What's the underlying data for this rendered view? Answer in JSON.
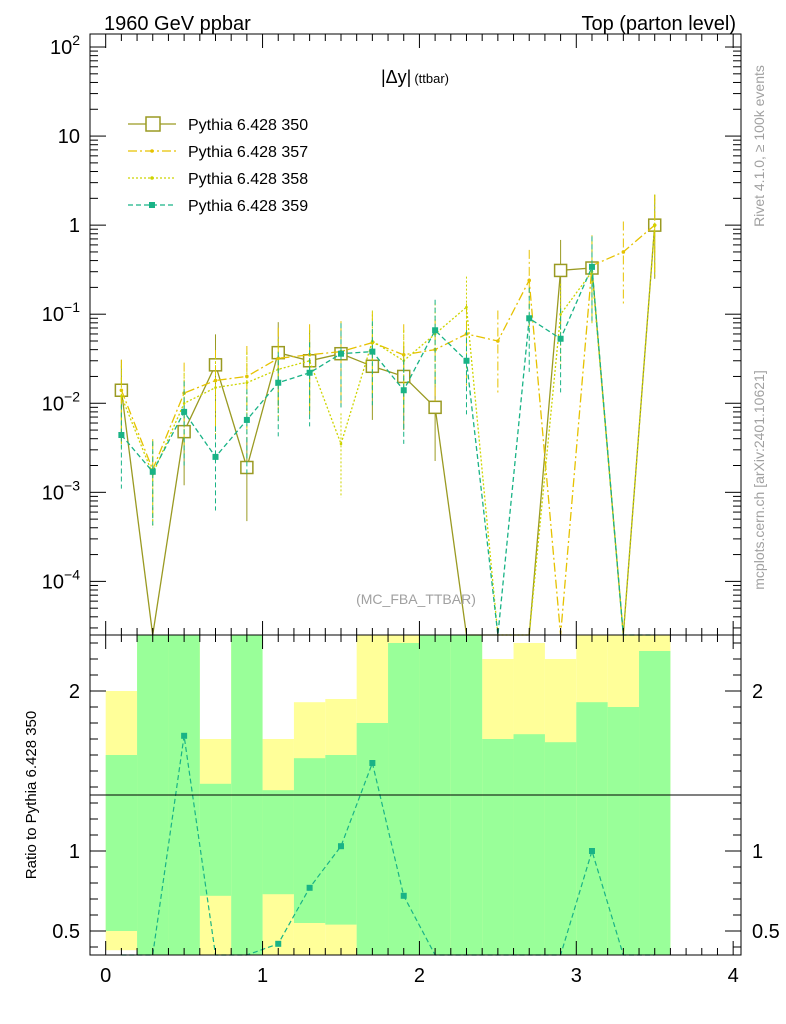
{
  "header": {
    "left": "1960 GeV ppbar",
    "right": "Top (parton level)"
  },
  "side_labels": {
    "rivet": "Rivet 4.1.0, ≥ 100k events",
    "mcplots": "mcplots.cern.ch [arXiv:2401.10621]"
  },
  "chart_data": {
    "type": "line",
    "title": "|Δy| (ttbar)",
    "title_main": "|Δy|",
    "title_sub": "(ttbar)",
    "analysis_label": "(MC_FBA_TTBAR)",
    "xlabel": "",
    "ylabel": "",
    "ratio_ylabel": "Ratio to Pythia 6.428 350",
    "xlim": [
      -0.1,
      4.05
    ],
    "ylim": [
      2.5e-05,
      140
    ],
    "yscale": "log",
    "ratio_ylim": [
      0.35,
      2.35
    ],
    "x_ticks": [
      "0",
      "1",
      "2",
      "3",
      "4"
    ],
    "y_ticks": [
      "10^-4",
      "10^-3",
      "10^-2",
      "10^-1",
      "1",
      "10",
      "10^2"
    ],
    "ratio_ticks": [
      "0.5",
      "1",
      "2"
    ],
    "legend_position": "top-left",
    "x": [
      0.1,
      0.3,
      0.5,
      0.7,
      0.9,
      1.1,
      1.3,
      1.5,
      1.7,
      1.9,
      2.1,
      2.3,
      2.5,
      2.7,
      2.9,
      3.1,
      3.3,
      3.5
    ],
    "bin_edges": [
      0,
      0.2,
      0.4,
      0.6,
      0.8,
      1.0,
      1.2,
      1.4,
      1.6,
      1.8,
      2.0,
      2.2,
      2.4,
      2.6,
      2.8,
      3.0,
      3.2,
      3.4,
      3.6
    ],
    "series": [
      {
        "name": "Pythia 6.428 350",
        "color": "#9a9a22",
        "dash": "",
        "marker": "open-square",
        "values": [
          0.014,
          2.5e-05,
          0.0048,
          0.027,
          0.0019,
          0.037,
          0.03,
          0.036,
          0.026,
          0.02,
          0.009,
          2.5e-05,
          2.5e-05,
          2.5e-05,
          0.31,
          0.33,
          2.5e-05,
          1.0
        ]
      },
      {
        "name": "Pythia 6.428 357",
        "color": "#e6c200",
        "dash": "9,3,2,3",
        "marker": "dot",
        "values": [
          0.014,
          0.0018,
          0.013,
          0.018,
          0.02,
          0.032,
          0.035,
          0.038,
          0.048,
          0.035,
          0.04,
          0.06,
          0.05,
          0.24,
          2.5e-05,
          0.35,
          0.5,
          1.0
        ]
      },
      {
        "name": "Pythia 6.428 358",
        "color": "#cdd400",
        "dash": "2,2",
        "marker": "small-dot",
        "values": [
          0.012,
          0.0016,
          0.01,
          0.015,
          0.017,
          0.024,
          0.03,
          0.0035,
          0.05,
          0.03,
          0.06,
          0.12,
          2.5e-05,
          0.0,
          0.1,
          0.3,
          2.5e-05,
          1.0
        ]
      },
      {
        "name": "Pythia 6.428 359",
        "color": "#19b386",
        "dash": "5,3",
        "marker": "filled-square",
        "values": [
          0.0044,
          0.0017,
          0.008,
          0.0025,
          0.0065,
          0.017,
          0.022,
          0.036,
          0.038,
          0.014,
          0.066,
          0.03,
          2.5e-05,
          0.09,
          0.053,
          0.34,
          2.5e-05,
          0.0
        ]
      }
    ],
    "ratio_series_359": [
      null,
      null,
      1.72,
      null,
      null,
      0.42,
      0.77,
      1.03,
      1.55,
      0.72,
      null,
      null,
      null,
      null,
      null,
      1.0,
      null,
      null
    ],
    "ratio_band_yellow": [
      [
        0.38,
        2.0
      ],
      [
        0.35,
        2.35
      ],
      [
        0.35,
        2.35
      ],
      [
        0.35,
        1.7
      ],
      [
        0.35,
        2.35
      ],
      [
        0.35,
        1.7
      ],
      [
        0.35,
        1.93
      ],
      [
        0.35,
        1.95
      ],
      [
        0.35,
        2.35
      ],
      [
        0.35,
        2.35
      ],
      [
        0.35,
        2.35
      ],
      [
        0.35,
        2.35
      ],
      [
        0.35,
        2.2
      ],
      [
        0.35,
        2.3
      ],
      [
        0.35,
        2.2
      ],
      [
        0.35,
        2.35
      ],
      [
        0.35,
        2.35
      ],
      [
        0.35,
        2.35
      ]
    ],
    "ratio_band_green": [
      [
        0.5,
        1.6
      ],
      [
        0.35,
        2.35
      ],
      [
        0.35,
        2.35
      ],
      [
        0.72,
        1.42
      ],
      [
        0.35,
        2.35
      ],
      [
        0.73,
        1.38
      ],
      [
        0.55,
        1.58
      ],
      [
        0.54,
        1.6
      ],
      [
        0.35,
        1.8
      ],
      [
        0.35,
        2.3
      ],
      [
        0.35,
        2.35
      ],
      [
        0.35,
        2.35
      ],
      [
        0.35,
        1.7
      ],
      [
        0.35,
        1.73
      ],
      [
        0.35,
        1.68
      ],
      [
        0.35,
        1.93
      ],
      [
        0.35,
        1.9
      ],
      [
        0.35,
        2.25
      ]
    ]
  }
}
